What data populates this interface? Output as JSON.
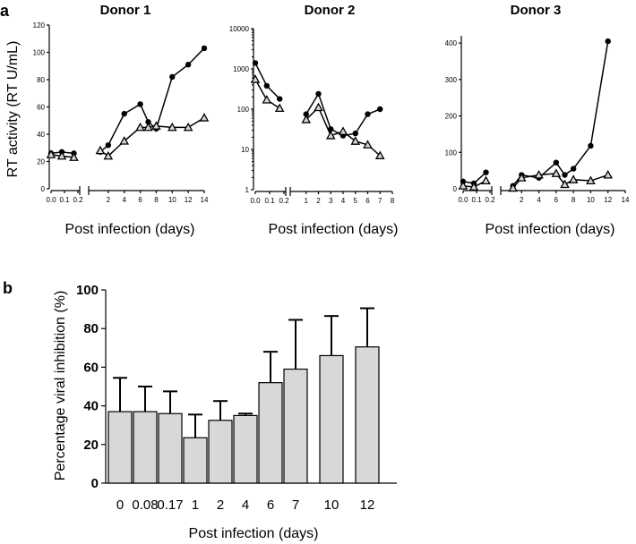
{
  "panel_a_label": "a",
  "panel_b_label": "b",
  "chart_data": [
    {
      "type": "line",
      "title": "Donor 1",
      "ylabel": "RT activity (RT U/mL)",
      "xlabel": "Post infection (days)",
      "yscale": "linear",
      "ylim": [
        0,
        120
      ],
      "yticks": [
        0,
        20,
        40,
        60,
        80,
        100,
        120
      ],
      "xbreak": {
        "left_range": [
          0,
          0.2
        ],
        "right_range": [
          0,
          14
        ]
      },
      "xticks_left": [
        0.0,
        0.1,
        0.2
      ],
      "xticks_right": [
        2,
        4,
        6,
        8,
        10,
        12,
        14
      ],
      "xtick_labels_left": [
        "0.0",
        "0.1",
        "0.2"
      ],
      "xtick_labels_right": [
        "2",
        "4",
        "6",
        "8",
        "10",
        "12",
        "14"
      ],
      "series": [
        {
          "name": "circle",
          "marker": "circle",
          "left": [
            [
              0,
              26
            ],
            [
              0.08,
              27
            ],
            [
              0.17,
              26
            ]
          ],
          "right": [
            [
              1,
              27
            ],
            [
              2,
              32
            ],
            [
              4,
              55
            ],
            [
              6,
              62
            ],
            [
              7,
              49
            ],
            [
              8,
              44
            ],
            [
              10,
              82
            ],
            [
              12,
              91
            ],
            [
              14,
              103
            ]
          ]
        },
        {
          "name": "triangle",
          "marker": "triangle",
          "left": [
            [
              0,
              25
            ],
            [
              0.08,
              24
            ],
            [
              0.17,
              23
            ]
          ],
          "right": [
            [
              1,
              28
            ],
            [
              2,
              24
            ],
            [
              4,
              35
            ],
            [
              6,
              45
            ],
            [
              7,
              45
            ],
            [
              8,
              46
            ],
            [
              10,
              45
            ],
            [
              12,
              45
            ],
            [
              14,
              52
            ]
          ]
        }
      ]
    },
    {
      "type": "line",
      "title": "Donor 2",
      "ylabel": "",
      "xlabel": "Post infection (days)",
      "yscale": "log",
      "ylim": [
        1,
        10000
      ],
      "yticks": [
        1,
        10,
        100,
        1000,
        10000
      ],
      "ytick_labels": [
        "1",
        "10",
        "100",
        "1000",
        "10000"
      ],
      "xbreak": {
        "left_range": [
          0,
          0.2
        ],
        "right_range": [
          0,
          8
        ]
      },
      "xticks_left": [
        0.0,
        0.1,
        0.2
      ],
      "xticks_right": [
        1,
        2,
        3,
        4,
        5,
        6,
        7,
        8
      ],
      "xtick_labels_left": [
        "0.0",
        "0.1",
        "0.2"
      ],
      "xtick_labels_right": [
        "1",
        "2",
        "3",
        "4",
        "5",
        "6",
        "7",
        "8"
      ],
      "series": [
        {
          "name": "circle",
          "marker": "circle",
          "left": [
            [
              0,
              1400
            ],
            [
              0.08,
              380
            ],
            [
              0.17,
              180
            ]
          ],
          "right": [
            [
              1,
              75
            ],
            [
              2,
              240
            ],
            [
              3,
              32
            ],
            [
              4,
              22
            ],
            [
              5,
              25
            ],
            [
              6,
              75
            ],
            [
              7,
              100
            ]
          ]
        },
        {
          "name": "triangle",
          "marker": "triangle",
          "left": [
            [
              0,
              550
            ],
            [
              0.08,
              170
            ],
            [
              0.17,
              105
            ]
          ],
          "right": [
            [
              1,
              55
            ],
            [
              2,
              110
            ],
            [
              3,
              22
            ],
            [
              4,
              28
            ],
            [
              5,
              16
            ],
            [
              6,
              13
            ],
            [
              7,
              7
            ]
          ]
        }
      ]
    },
    {
      "type": "line",
      "title": "Donor 3",
      "ylabel": "",
      "xlabel": "Post infection (days)",
      "yscale": "linear",
      "ylim": [
        0,
        420
      ],
      "yticks": [
        0,
        100,
        200,
        300,
        400
      ],
      "xbreak": {
        "left_range": [
          0,
          0.2
        ],
        "right_range": [
          0,
          14
        ]
      },
      "xticks_left": [
        0.0,
        0.1,
        0.2
      ],
      "xticks_right": [
        2,
        4,
        6,
        8,
        10,
        12,
        14
      ],
      "xtick_labels_left": [
        "0.0",
        "0.1",
        "0.2"
      ],
      "xtick_labels_right": [
        "2",
        "4",
        "6",
        "8",
        "10",
        "12",
        "14"
      ],
      "series": [
        {
          "name": "circle",
          "marker": "circle",
          "left": [
            [
              0,
              20
            ],
            [
              0.08,
              15
            ],
            [
              0.17,
              45
            ]
          ],
          "right": [
            [
              1,
              8
            ],
            [
              2,
              38
            ],
            [
              4,
              30
            ],
            [
              6,
              72
            ],
            [
              7,
              38
            ],
            [
              8,
              55
            ],
            [
              10,
              118
            ],
            [
              12,
              405
            ]
          ]
        },
        {
          "name": "triangle",
          "marker": "triangle",
          "left": [
            [
              0,
              8
            ],
            [
              0.08,
              5
            ],
            [
              0.17,
              22
            ]
          ],
          "right": [
            [
              1,
              2
            ],
            [
              2,
              30
            ],
            [
              4,
              38
            ],
            [
              6,
              42
            ],
            [
              7,
              12
            ],
            [
              8,
              25
            ],
            [
              10,
              22
            ],
            [
              12,
              38
            ]
          ]
        }
      ]
    },
    {
      "type": "bar",
      "title": "",
      "ylabel": "Percentage viral inhibition (%)",
      "xlabel": "Post infection (days)",
      "ylim": [
        0,
        100
      ],
      "yticks": [
        0,
        20,
        40,
        60,
        80,
        100
      ],
      "categories": [
        "0",
        "0.08",
        "0.17",
        "1",
        "2",
        "4",
        "6",
        "7",
        "10",
        "12"
      ],
      "values": [
        37,
        37,
        36,
        23.5,
        32.5,
        35,
        52,
        59,
        66,
        70.5
      ],
      "errors": [
        17.5,
        13,
        11.5,
        12,
        10,
        1,
        16,
        25.5,
        20.5,
        20
      ],
      "bar_color": "#d8d8d8"
    }
  ]
}
